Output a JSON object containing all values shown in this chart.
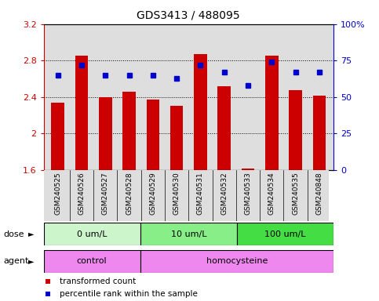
{
  "title": "GDS3413 / 488095",
  "samples": [
    "GSM240525",
    "GSM240526",
    "GSM240527",
    "GSM240528",
    "GSM240529",
    "GSM240530",
    "GSM240531",
    "GSM240532",
    "GSM240533",
    "GSM240534",
    "GSM240535",
    "GSM240848"
  ],
  "transformed_count": [
    2.34,
    2.85,
    2.4,
    2.46,
    2.37,
    2.3,
    2.87,
    2.52,
    1.62,
    2.85,
    2.48,
    2.42
  ],
  "percentile_rank": [
    65,
    72,
    65,
    65,
    65,
    63,
    72,
    67,
    58,
    74,
    67,
    67
  ],
  "ylim_left": [
    1.6,
    3.2
  ],
  "ylim_right": [
    0,
    100
  ],
  "yticks_left": [
    1.6,
    2.0,
    2.4,
    2.8,
    3.2
  ],
  "yticks_right": [
    0,
    25,
    50,
    75,
    100
  ],
  "ytick_labels_left": [
    "1.6",
    "2",
    "2.4",
    "2.8",
    "3.2"
  ],
  "ytick_labels_right": [
    "0",
    "25",
    "50",
    "75",
    "100%"
  ],
  "dose_groups": [
    {
      "label": "0 um/L",
      "start": 0,
      "end": 4,
      "color": "#ccf5cc"
    },
    {
      "label": "10 um/L",
      "start": 4,
      "end": 8,
      "color": "#88ee88"
    },
    {
      "label": "100 um/L",
      "start": 8,
      "end": 12,
      "color": "#44dd44"
    }
  ],
  "agent_groups": [
    {
      "label": "control",
      "start": 0,
      "end": 4,
      "color": "#ee88ee"
    },
    {
      "label": "homocysteine",
      "start": 4,
      "end": 12,
      "color": "#ee88ee"
    }
  ],
  "bar_color": "#cc0000",
  "dot_color": "#0000cc",
  "bar_width": 0.55,
  "bar_bottom": 1.6,
  "axis_bg": "#dedede",
  "legend_items": [
    {
      "color": "#cc0000",
      "label": "transformed count"
    },
    {
      "color": "#0000cc",
      "label": "percentile rank within the sample"
    }
  ],
  "tick_fontsize": 8,
  "sample_fontsize": 6.5,
  "title_fontsize": 10
}
